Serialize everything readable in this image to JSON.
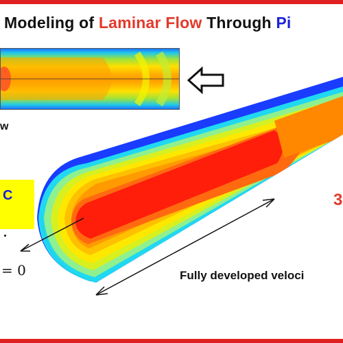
{
  "title": {
    "part1": "Modeling of ",
    "part2": "Laminar Flow",
    "part3": " Through ",
    "part4": "Pi"
  },
  "labels": {
    "flow_fragment": "w",
    "box_fragment": "C",
    "three_d_fragment": "3",
    "equation": "= 0",
    "caption": "Fully developed veloci"
  },
  "colors": {
    "border": "#e02020",
    "title_red": "#e23a2a",
    "title_blue": "#1a22d8",
    "highlight_box": "#ffff00"
  },
  "icons": {
    "outline_arrow": "left-outline-arrow-icon",
    "axis_arrow": "radius-arrow-icon",
    "length_arrow": "double-headed-arrow-icon"
  }
}
